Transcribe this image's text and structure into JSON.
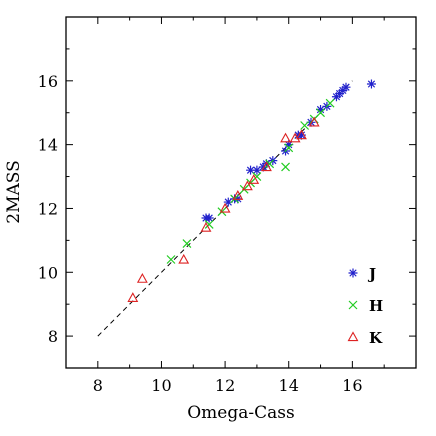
{
  "chart_data": {
    "type": "scatter",
    "xlabel": "Omega-Cass",
    "ylabel": "2MASS",
    "xlim": [
      7,
      18
    ],
    "ylim": [
      7,
      18
    ],
    "xticks": [
      8,
      10,
      12,
      14,
      16
    ],
    "yticks": [
      8,
      10,
      12,
      14,
      16
    ],
    "grid": false,
    "legend_position": "bottom-right",
    "reference_line": {
      "style": "dashed",
      "color": "#000000",
      "from": [
        8,
        8
      ],
      "to": [
        16,
        16
      ]
    },
    "series": [
      {
        "name": "J",
        "marker": "asterisk",
        "color": "#2222cc",
        "x": [
          11.4,
          11.5,
          12.1,
          12.3,
          12.4,
          12.8,
          13.0,
          13.2,
          13.3,
          13.5,
          13.9,
          14.0,
          14.3,
          14.4,
          14.7,
          15.0,
          15.2,
          15.5,
          15.6,
          15.7,
          15.8,
          16.6
        ],
        "y": [
          11.7,
          11.7,
          12.2,
          12.3,
          12.3,
          13.2,
          13.2,
          13.3,
          13.4,
          13.5,
          13.8,
          14.0,
          14.3,
          14.3,
          14.7,
          15.1,
          15.2,
          15.5,
          15.6,
          15.7,
          15.8,
          15.9
        ]
      },
      {
        "name": "H",
        "marker": "x",
        "color": "#22cc22",
        "x": [
          10.3,
          10.8,
          11.5,
          11.9,
          12.3,
          12.6,
          12.8,
          13.0,
          13.4,
          13.9,
          14.0,
          14.5,
          14.8,
          15.0,
          15.3
        ],
        "y": [
          10.4,
          10.9,
          11.5,
          11.9,
          12.3,
          12.6,
          12.8,
          13.0,
          13.4,
          13.3,
          13.9,
          14.6,
          14.8,
          15.0,
          15.3
        ]
      },
      {
        "name": "K",
        "marker": "triangle",
        "color": "#dd2222",
        "x": [
          9.1,
          9.4,
          10.7,
          11.4,
          12.0,
          12.4,
          12.7,
          12.9,
          13.3,
          13.9,
          14.2,
          14.4,
          14.8
        ],
        "y": [
          9.2,
          9.8,
          10.4,
          11.4,
          12.0,
          12.4,
          12.7,
          12.9,
          13.3,
          14.2,
          14.2,
          14.3,
          14.7
        ]
      }
    ]
  }
}
